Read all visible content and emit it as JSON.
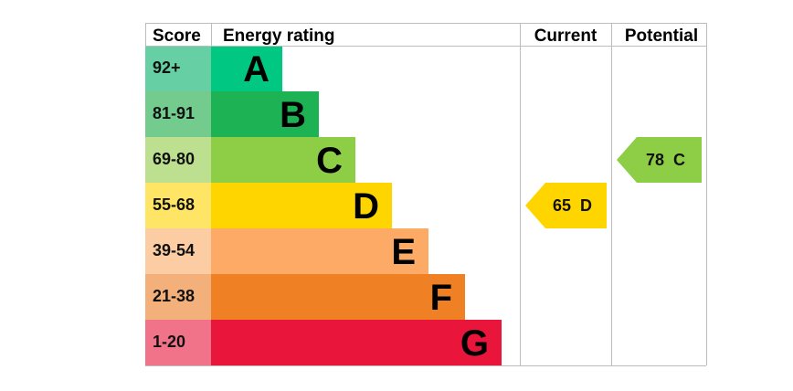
{
  "chart_data": {
    "type": "bar",
    "headers": {
      "score": "Score",
      "rating": "Energy rating",
      "current": "Current",
      "potential": "Potential"
    },
    "bands": [
      {
        "letter": "A",
        "range": "92+",
        "min": 92,
        "max": 100,
        "color": "#00c781",
        "score_color": "#66cfa3"
      },
      {
        "letter": "B",
        "range": "81-91",
        "min": 81,
        "max": 91,
        "color": "#1db355",
        "score_color": "#73cc8e"
      },
      {
        "letter": "C",
        "range": "69-80",
        "min": 69,
        "max": 80,
        "color": "#8dce46",
        "score_color": "#bce08f"
      },
      {
        "letter": "D",
        "range": "55-68",
        "min": 55,
        "max": 68,
        "color": "#ffd500",
        "score_color": "#ffe566"
      },
      {
        "letter": "E",
        "range": "39-54",
        "min": 39,
        "max": 54,
        "color": "#fcaa65",
        "score_color": "#fccca3"
      },
      {
        "letter": "F",
        "range": "21-38",
        "min": 21,
        "max": 38,
        "color": "#ef8023",
        "score_color": "#f4b07a"
      },
      {
        "letter": "G",
        "range": "1-20",
        "min": 1,
        "max": 20,
        "color": "#e9153b",
        "score_color": "#f17389"
      }
    ],
    "current": {
      "value": 65,
      "band": "D",
      "label": "65  D"
    },
    "potential": {
      "value": 78,
      "band": "C",
      "label": "78  C"
    }
  }
}
